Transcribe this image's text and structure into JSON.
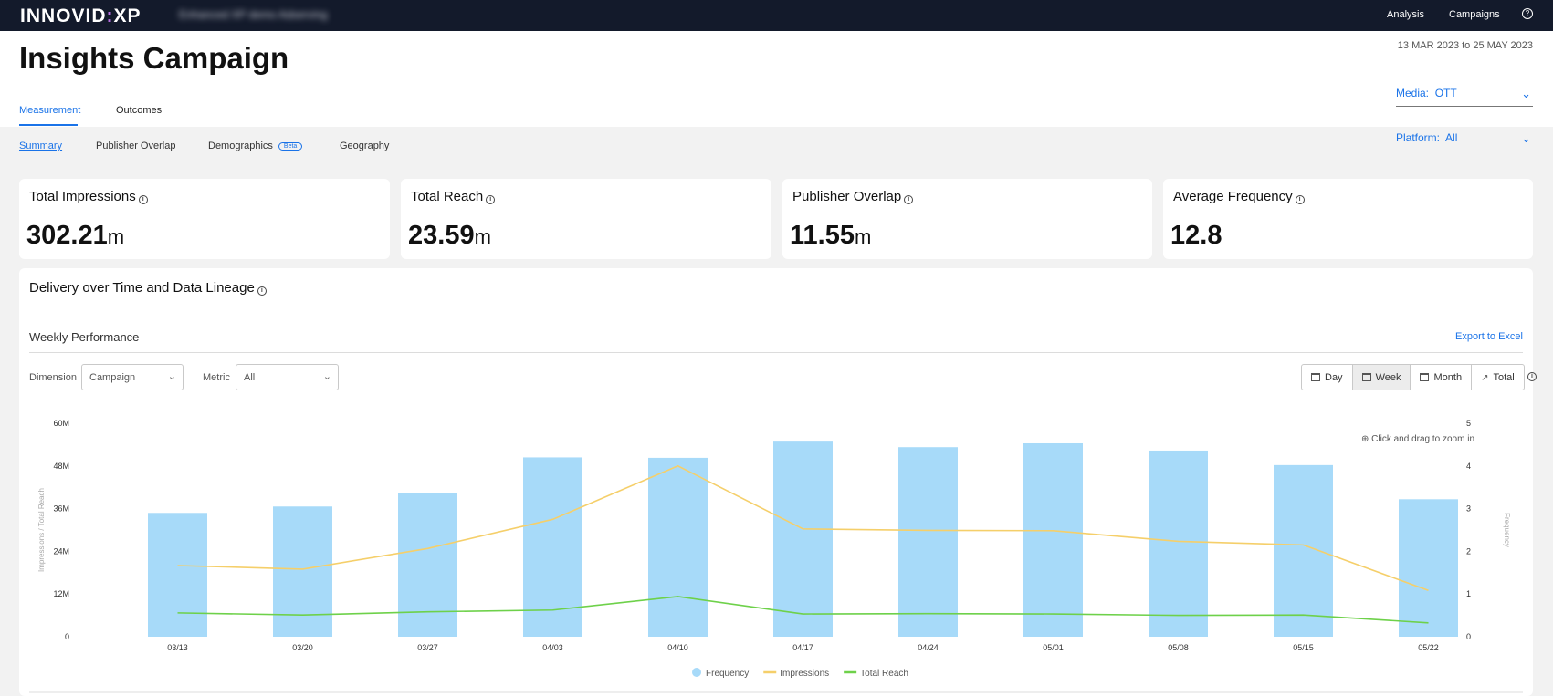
{
  "topbar": {
    "brand": "INNOVID",
    "brand_suffix": "XP",
    "account_name": "Enhanced XP demo Adserving",
    "nav": [
      "Analysis",
      "Campaigns"
    ],
    "help_glyph": "?"
  },
  "header": {
    "title": "Insights Campaign",
    "date_range": "13 MAR 2023 to 25 MAY 2023",
    "tabs": [
      {
        "label": "Measurement",
        "active": true
      },
      {
        "label": "Outcomes",
        "active": false
      }
    ],
    "media_filter": {
      "label": "Media:",
      "value": "OTT"
    },
    "platform_filter": {
      "label": "Platform:",
      "value": "All"
    }
  },
  "subtabs": [
    {
      "label": "Summary",
      "active": true
    },
    {
      "label": "Publisher Overlap",
      "active": false
    },
    {
      "label": "Demographics",
      "badge": "Beta",
      "active": false
    },
    {
      "label": "Geography",
      "active": false
    }
  ],
  "kpis": [
    {
      "title": "Total Impressions",
      "value": "302.21",
      "unit": "m"
    },
    {
      "title": "Total Reach",
      "value": "23.59",
      "unit": "m"
    },
    {
      "title": "Publisher Overlap",
      "value": "11.55",
      "unit": "m"
    },
    {
      "title": "Average Frequency",
      "value": "12.8",
      "unit": ""
    }
  ],
  "delivery": {
    "title": "Delivery over Time and Data Lineage",
    "section_title": "Weekly Performance",
    "export_label": "Export to Excel",
    "dimension": {
      "label": "Dimension",
      "value": "Campaign"
    },
    "metric": {
      "label": "Metric",
      "value": "All"
    },
    "periods": [
      {
        "label": "Day",
        "active": false
      },
      {
        "label": "Week",
        "active": true
      },
      {
        "label": "Month",
        "active": false
      },
      {
        "label": "Total",
        "active": false
      }
    ],
    "zoom_hint": "Click and drag to zoom in"
  },
  "icons": {
    "info": "info-icon",
    "calendar": "calendar-icon",
    "trend": "trend-icon",
    "chevron": "chevron-down-icon",
    "zoom": "zoom-icon",
    "help": "help-icon"
  },
  "colors": {
    "topbar": "#131a2b",
    "accent": "#1a73e8",
    "frequency": "#a7daf9",
    "impressions": "#f5cf6a",
    "reach": "#6ed14a"
  },
  "chart_data": {
    "type": "bar",
    "categories": [
      "03/13",
      "03/20",
      "03/27",
      "04/03",
      "04/10",
      "04/17",
      "04/24",
      "05/01",
      "05/08",
      "05/15",
      "05/22"
    ],
    "ylabel": "Impressions / Total Reach",
    "y2label": "Frequency",
    "ylim": [
      0,
      60000000
    ],
    "y_ticks": [
      "0",
      "12M",
      "24M",
      "36M",
      "48M",
      "60M"
    ],
    "y2lim": [
      0,
      5
    ],
    "y2_ticks": [
      "0",
      "1",
      "2",
      "3",
      "4",
      "5"
    ],
    "series": [
      {
        "name": "Frequency",
        "type": "bar",
        "axis": "right",
        "color": "#a7daf9",
        "values": [
          2.9,
          3.05,
          3.37,
          4.2,
          4.19,
          4.57,
          4.44,
          4.53,
          4.36,
          4.02,
          3.22
        ]
      },
      {
        "name": "Impressions",
        "type": "line",
        "axis": "left",
        "color": "#f5cf6a",
        "values": [
          20000000,
          19000000,
          24800000,
          33000000,
          48000000,
          30300000,
          29900000,
          29800000,
          26800000,
          25800000,
          13000000
        ]
      },
      {
        "name": "Total Reach",
        "type": "line",
        "axis": "left",
        "color": "#6ed14a",
        "values": [
          6700000,
          6100000,
          7000000,
          7500000,
          11300000,
          6400000,
          6500000,
          6400000,
          6000000,
          6100000,
          3900000
        ]
      }
    ],
    "legend_position": "bottom-center"
  }
}
